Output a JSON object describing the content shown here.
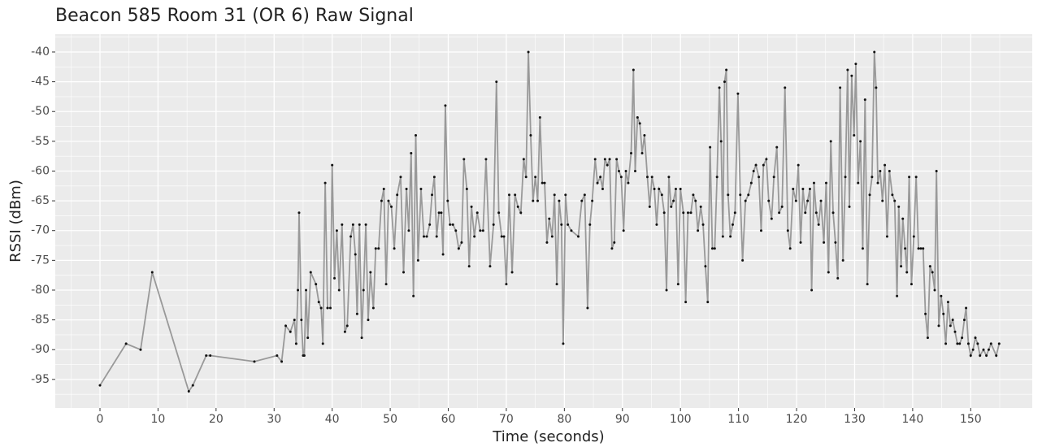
{
  "chart_data": {
    "type": "line",
    "title": "Beacon 585 Room 31 (OR 6) Raw Signal",
    "x_label": "Time (seconds)",
    "y_label": "RSSI (dBm)",
    "x": [
      0,
      4.5,
      7,
      9,
      15.3,
      16,
      18.3,
      19,
      26.6,
      30.5,
      31.3,
      32,
      32.8,
      33.5,
      33.8,
      34.1,
      34.3,
      34.7,
      35,
      35.2,
      35.5,
      35.8,
      36.3,
      37.2,
      37.7,
      38.1,
      38.4,
      38.8,
      39.2,
      39.7,
      40,
      40.4,
      40.8,
      41.2,
      41.7,
      42.2,
      42.6,
      43.2,
      43.6,
      44,
      44.3,
      44.7,
      45.1,
      45.4,
      45.8,
      46.2,
      46.6,
      47.1,
      47.5,
      48,
      48.5,
      48.9,
      49.3,
      49.7,
      50.2,
      50.7,
      51.2,
      51.8,
      52.3,
      52.8,
      53.2,
      53.6,
      54,
      54.4,
      54.8,
      55.3,
      55.8,
      56.3,
      56.8,
      57.2,
      57.6,
      58,
      58.4,
      58.8,
      59.1,
      59.5,
      59.9,
      60.3,
      60.8,
      61.3,
      61.8,
      62.3,
      62.7,
      63.2,
      63.6,
      64,
      64.5,
      65,
      65.5,
      66,
      66.5,
      67.2,
      67.8,
      68.3,
      68.7,
      69.2,
      69.6,
      70,
      70.5,
      71,
      71.5,
      72,
      72.5,
      73,
      73.4,
      73.8,
      74.2,
      74.6,
      75,
      75.4,
      75.8,
      76.2,
      76.6,
      77,
      77.4,
      77.9,
      78.3,
      78.7,
      79.1,
      79.5,
      79.8,
      80.2,
      80.6,
      81.2,
      82.4,
      83,
      83.5,
      84,
      84.4,
      84.8,
      85.3,
      85.7,
      86.2,
      86.6,
      87,
      87.4,
      87.8,
      88.2,
      88.6,
      89,
      89.4,
      89.8,
      90.2,
      90.6,
      91,
      91.5,
      91.9,
      92.2,
      92.6,
      93,
      93.4,
      93.8,
      94.3,
      94.7,
      95.1,
      95.5,
      95.9,
      96.3,
      96.8,
      97.2,
      97.6,
      98,
      98.4,
      98.8,
      99.2,
      99.6,
      100,
      100.5,
      100.9,
      101.3,
      101.8,
      102.2,
      102.6,
      103,
      103.5,
      103.9,
      104.3,
      104.7,
      105.1,
      105.5,
      105.9,
      106.3,
      106.7,
      107,
      107.3,
      107.6,
      107.9,
      108.2,
      108.6,
      109,
      109.4,
      109.9,
      110.3,
      110.7,
      111.2,
      111.7,
      112.2,
      112.6,
      113,
      113.5,
      113.9,
      114.3,
      114.8,
      115.2,
      115.7,
      116.1,
      116.6,
      117,
      117.5,
      118,
      118.5,
      118.9,
      119.4,
      119.9,
      120.3,
      120.7,
      121.1,
      121.5,
      121.9,
      122.3,
      122.6,
      123,
      123.4,
      123.8,
      124.2,
      124.7,
      125.1,
      125.5,
      125.9,
      126.3,
      126.7,
      127.1,
      127.5,
      128,
      128.4,
      128.8,
      129.1,
      129.5,
      129.9,
      130.2,
      130.6,
      131,
      131.4,
      131.8,
      132.2,
      132.6,
      133,
      133.4,
      133.7,
      134,
      134.4,
      134.8,
      135.2,
      135.6,
      136,
      136.5,
      136.9,
      137.3,
      137.6,
      138,
      138.3,
      138.7,
      139,
      139.4,
      139.8,
      140.2,
      140.6,
      141,
      141.4,
      141.8,
      142.2,
      142.6,
      143,
      143.4,
      143.8,
      144.1,
      144.5,
      144.9,
      145.3,
      145.7,
      146.1,
      146.5,
      146.9,
      147.3,
      147.7,
      148.1,
      148.5,
      148.9,
      149.2,
      149.6,
      150,
      150.4,
      150.8,
      151.2,
      151.6,
      152.2,
      152.7,
      153.1,
      153.5,
      154.4,
      154.9
    ],
    "series": [
      {
        "color": "#999999",
        "point_color": "#111111",
        "values": [
          -96,
          -89,
          -90,
          -77,
          -97,
          -96,
          -91,
          -91,
          -92,
          -91,
          -92,
          -86,
          -87,
          -85,
          -89,
          -80,
          -67,
          -85,
          -91,
          -91,
          -80,
          -88,
          -77,
          -79,
          -82,
          -83,
          -89,
          -62,
          -83,
          -83,
          -59,
          -78,
          -70,
          -80,
          -69,
          -87,
          -86,
          -71,
          -69,
          -74,
          -84,
          -69,
          -88,
          -80,
          -69,
          -85,
          -77,
          -83,
          -73,
          -73,
          -65,
          -63,
          -79,
          -65,
          -66,
          -73,
          -64,
          -61,
          -77,
          -63,
          -70,
          -57,
          -81,
          -54,
          -75,
          -63,
          -71,
          -71,
          -69,
          -64,
          -61,
          -71,
          -67,
          -67,
          -74,
          -49,
          -65,
          -69,
          -69,
          -70,
          -73,
          -72,
          -58,
          -63,
          -76,
          -66,
          -71,
          -67,
          -70,
          -70,
          -58,
          -76,
          -69,
          -45,
          -67,
          -71,
          -71,
          -79,
          -64,
          -77,
          -64,
          -66,
          -67,
          -58,
          -61,
          -40,
          -54,
          -65,
          -61,
          -65,
          -51,
          -62,
          -62,
          -72,
          -68,
          -71,
          -64,
          -79,
          -65,
          -69,
          -89,
          -64,
          -69,
          -70,
          -71,
          -65,
          -64,
          -83,
          -69,
          -65,
          -58,
          -62,
          -61,
          -63,
          -58,
          -59,
          -58,
          -73,
          -72,
          -58,
          -60,
          -61,
          -70,
          -60,
          -62,
          -57,
          -43,
          -60,
          -51,
          -52,
          -57,
          -54,
          -61,
          -66,
          -61,
          -63,
          -69,
          -63,
          -64,
          -67,
          -80,
          -61,
          -66,
          -65,
          -63,
          -79,
          -63,
          -67,
          -82,
          -67,
          -67,
          -64,
          -65,
          -70,
          -66,
          -69,
          -76,
          -82,
          -56,
          -73,
          -73,
          -61,
          -46,
          -55,
          -71,
          -45,
          -43,
          -64,
          -71,
          -69,
          -67,
          -47,
          -64,
          -75,
          -65,
          -64,
          -62,
          -60,
          -59,
          -61,
          -70,
          -59,
          -58,
          -65,
          -68,
          -61,
          -56,
          -67,
          -66,
          -46,
          -70,
          -73,
          -63,
          -65,
          -59,
          -72,
          -63,
          -67,
          -65,
          -63,
          -80,
          -62,
          -67,
          -69,
          -65,
          -72,
          -62,
          -77,
          -55,
          -67,
          -72,
          -78,
          -46,
          -75,
          -61,
          -43,
          -66,
          -44,
          -54,
          -42,
          -62,
          -55,
          -73,
          -48,
          -79,
          -64,
          -61,
          -40,
          -46,
          -62,
          -60,
          -65,
          -59,
          -71,
          -60,
          -64,
          -65,
          -81,
          -66,
          -76,
          -68,
          -73,
          -77,
          -61,
          -79,
          -71,
          -61,
          -73,
          -73,
          -73,
          -84,
          -88,
          -76,
          -77,
          -80,
          -60,
          -86,
          -81,
          -84,
          -89,
          -82,
          -86,
          -85,
          -87,
          -89,
          -89,
          -88,
          -85,
          -83,
          -89,
          -91,
          -90,
          -88,
          -89,
          -91,
          -90,
          -91,
          -90,
          -89,
          -91,
          -89
        ]
      }
    ],
    "xlim": [
      -7.7,
      160.6
    ],
    "ylim": [
      -99.8,
      -37
    ],
    "xticks": [
      0,
      10,
      20,
      30,
      40,
      50,
      60,
      70,
      80,
      90,
      100,
      110,
      120,
      130,
      140,
      150
    ],
    "yticks": [
      -95,
      -90,
      -85,
      -80,
      -75,
      -70,
      -65,
      -60,
      -55,
      -50,
      -45,
      -40
    ],
    "grid": true
  }
}
